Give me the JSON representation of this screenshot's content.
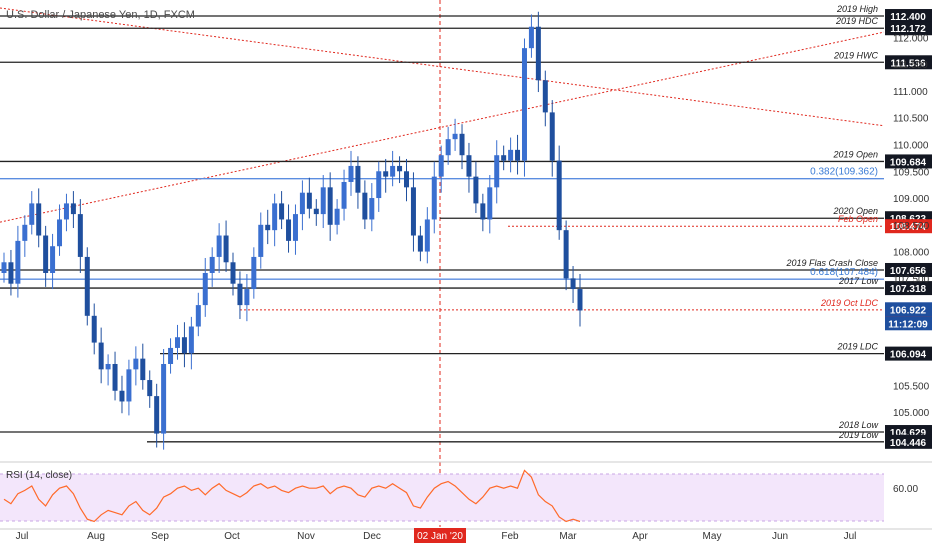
{
  "title": "U.S. Dollar / Japanese Yen, 1D, FXCM",
  "colors": {
    "up": "#3a6fd0",
    "down": "#1f4f9e",
    "level": "#222222",
    "fib": "#5b8de0",
    "red": "#e0281e",
    "rsi": "#ff6a2a",
    "rsi_band": "#f3e6fb",
    "dark_tag": "#131722"
  },
  "chart_data": {
    "type": "candlestick",
    "x_ticks": [
      "Jul",
      "Aug",
      "Sep",
      "Oct",
      "Nov",
      "Dec",
      "02 Jan '20",
      "Feb",
      "Mar",
      "Apr",
      "May",
      "Jun",
      "Jul"
    ],
    "y_ticks": [
      "112.000",
      "111.500",
      "111.000",
      "110.500",
      "110.000",
      "109.500",
      "109.000",
      "108.500",
      "108.000",
      "107.500",
      "105.500",
      "105.000"
    ],
    "ylim": [
      104.2,
      112.55
    ],
    "levels": [
      {
        "label": "2019 High",
        "value": 112.4,
        "tag": "112.400",
        "style": "solid"
      },
      {
        "label": "2019 HDC",
        "value": 112.172,
        "tag": "112.172",
        "style": "solid"
      },
      {
        "label": "2019 HWC",
        "value": 111.536,
        "tag": "111.536",
        "style": "solid"
      },
      {
        "label": "2019 Open",
        "value": 109.684,
        "tag": "109.684",
        "style": "solid"
      },
      {
        "label": "0.382(109.362)",
        "value": 109.362,
        "tag": "",
        "style": "fib"
      },
      {
        "label": "2020 Open",
        "value": 108.623,
        "tag": "108.623",
        "style": "solid"
      },
      {
        "label": "Feb Open",
        "value": 108.474,
        "tag": "108.474",
        "style": "red-dotted"
      },
      {
        "label": "2019 Flas Crash Close",
        "value": 107.656,
        "tag": "107.656",
        "style": "solid"
      },
      {
        "label": "0.618(107.484)",
        "value": 107.484,
        "tag": "",
        "style": "fib"
      },
      {
        "label": "2017 Low",
        "value": 107.318,
        "tag": "107.318",
        "style": "solid"
      },
      {
        "label": "2019 Oct LDC",
        "value": 106.912,
        "tag": "106.912",
        "style": "red-dotted"
      },
      {
        "label": "2019 LDC",
        "value": 106.094,
        "tag": "106.094",
        "style": "solid"
      },
      {
        "label": "2018 Low",
        "value": 104.629,
        "tag": "104.629",
        "style": "solid"
      },
      {
        "label": "2019 Low",
        "value": 104.446,
        "tag": "104.446",
        "style": "solid"
      }
    ],
    "current_price": {
      "value": 106.922,
      "tag": "106.922",
      "countdown": "11:12:09"
    },
    "price_path": [
      107.8,
      107.4,
      108.2,
      108.5,
      108.9,
      108.3,
      107.6,
      108.1,
      108.6,
      108.9,
      108.7,
      107.9,
      106.8,
      106.3,
      105.8,
      105.9,
      105.4,
      105.2,
      105.8,
      106.0,
      105.6,
      105.3,
      104.6,
      105.9,
      106.2,
      106.4,
      106.1,
      106.6,
      107.0,
      107.6,
      107.9,
      108.3,
      107.8,
      107.4,
      107.0,
      107.3,
      107.9,
      108.5,
      108.4,
      108.9,
      108.6,
      108.2,
      108.7,
      109.1,
      108.8,
      108.7,
      109.2,
      108.5,
      108.8,
      109.3,
      109.6,
      109.1,
      108.6,
      109.0,
      109.5,
      109.4,
      109.6,
      109.5,
      109.2,
      108.3,
      108.0,
      108.6,
      109.4,
      109.8,
      110.1,
      110.2,
      109.8,
      109.4,
      108.9,
      108.6,
      109.2,
      109.8,
      109.7,
      109.9,
      109.7,
      111.8,
      112.2,
      111.2,
      110.6,
      109.7,
      108.4,
      107.5,
      107.3,
      106.9
    ],
    "x_range_index": 84,
    "rsi": {
      "label": "RSI (14, close)",
      "tick": "60.00",
      "values": [
        50,
        46,
        55,
        58,
        62,
        50,
        44,
        54,
        60,
        62,
        55,
        42,
        32,
        30,
        36,
        40,
        38,
        36,
        44,
        48,
        40,
        36,
        42,
        52,
        55,
        60,
        62,
        58,
        60,
        54,
        60,
        64,
        58,
        55,
        52,
        56,
        62,
        64,
        60,
        62,
        58,
        56,
        60,
        62,
        60,
        60,
        62,
        55,
        60,
        62,
        60,
        54,
        52,
        60,
        62,
        60,
        64,
        60,
        56,
        44,
        42,
        52,
        60,
        64,
        66,
        62,
        56,
        50,
        46,
        52,
        60,
        62,
        60,
        62,
        60,
        76,
        70,
        54,
        48,
        44,
        34,
        30,
        32,
        30
      ],
      "ylim": [
        25,
        80
      ]
    }
  }
}
